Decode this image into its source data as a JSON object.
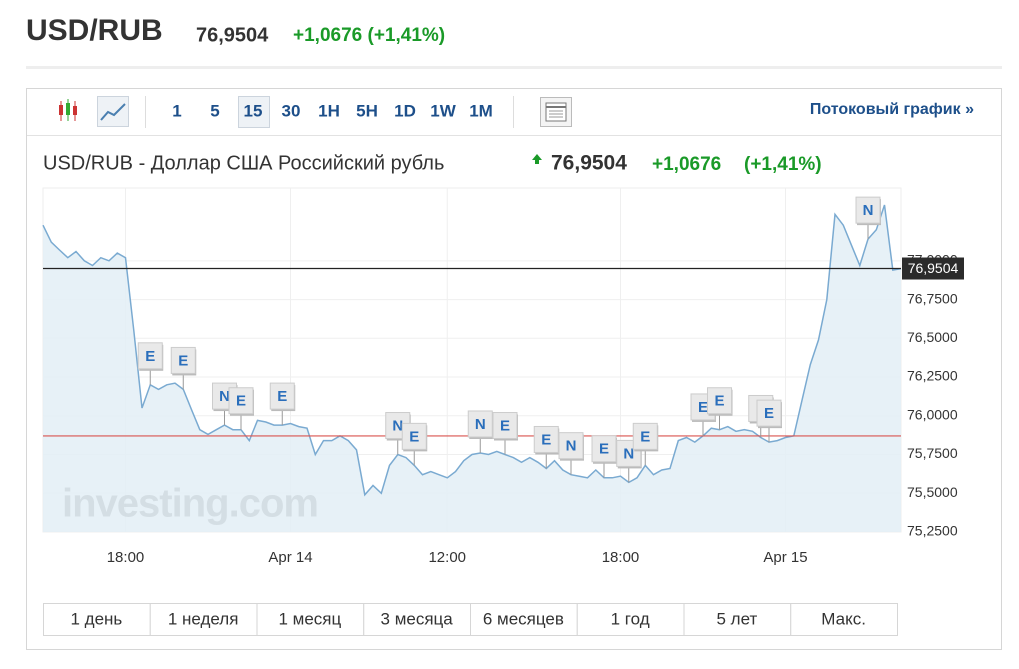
{
  "header": {
    "title": "USD/RUB",
    "price": "76,9504",
    "change": "+1,0676 (+1,41%)"
  },
  "toolbar": {
    "intervals": [
      "1",
      "5",
      "15",
      "30",
      "1H",
      "5H",
      "1D",
      "1W",
      "1M"
    ],
    "stream_link": "Потоковый график »"
  },
  "chart_data": {
    "type": "line",
    "title": "USD/RUB - Доллар США Российский рубль",
    "last_price": {
      "value": 76.9504,
      "label": "76,9504"
    },
    "change": "+1,0676",
    "change_pct": "(+1,41%)",
    "categories": [
      null,
      null,
      null,
      null,
      null,
      null,
      null,
      null,
      null,
      null,
      "18:00",
      null,
      null,
      null,
      null,
      null,
      null,
      null,
      null,
      null,
      null,
      null,
      null,
      null,
      null,
      null,
      null,
      null,
      null,
      null,
      "Apr 14",
      null,
      null,
      null,
      null,
      null,
      null,
      null,
      null,
      null,
      null,
      null,
      null,
      null,
      null,
      null,
      null,
      null,
      null,
      "12:00",
      null,
      null,
      null,
      null,
      null,
      null,
      null,
      null,
      null,
      null,
      null,
      null,
      null,
      null,
      null,
      null,
      null,
      null,
      null,
      null,
      "18:00",
      null,
      null,
      null,
      null,
      null,
      null,
      null,
      null,
      null,
      null,
      null,
      null,
      null,
      null,
      null,
      null,
      null,
      null,
      null,
      "Apr 15",
      null,
      null,
      null,
      null,
      null,
      null,
      null,
      null,
      null,
      null,
      null,
      null,
      null,
      null
    ],
    "values": [
      77.23,
      77.12,
      77.07,
      77.02,
      77.06,
      77.0,
      76.97,
      77.02,
      77.0,
      77.05,
      77.02,
      76.55,
      76.05,
      76.2,
      76.17,
      76.2,
      76.21,
      76.17,
      76.04,
      75.91,
      75.88,
      75.91,
      75.94,
      75.91,
      75.91,
      75.84,
      75.97,
      75.96,
      75.94,
      75.94,
      75.95,
      75.93,
      75.92,
      75.75,
      75.84,
      75.84,
      75.87,
      75.84,
      75.78,
      75.49,
      75.55,
      75.5,
      75.68,
      75.75,
      75.73,
      75.68,
      75.62,
      75.64,
      75.62,
      75.6,
      75.64,
      75.71,
      75.75,
      75.76,
      75.75,
      75.77,
      75.75,
      75.73,
      75.7,
      75.73,
      75.7,
      75.66,
      75.71,
      75.65,
      75.62,
      75.61,
      75.6,
      75.65,
      75.6,
      75.6,
      75.61,
      75.57,
      75.6,
      75.68,
      75.62,
      75.65,
      75.66,
      75.84,
      75.86,
      75.83,
      75.87,
      75.92,
      75.91,
      75.93,
      75.9,
      75.91,
      75.9,
      75.86,
      75.83,
      75.84,
      75.86,
      75.87,
      76.1,
      76.33,
      76.49,
      76.75,
      77.3,
      77.23,
      77.1,
      76.97,
      77.14,
      77.2,
      77.36,
      76.94,
      76.95
    ],
    "color": "#7aaad1",
    "area_color": "#e3eef6",
    "reference_line": 75.87,
    "reference_color": "#d9534f",
    "ylim": [
      75.25,
      77.47
    ],
    "yticks": [
      {
        "value": 75.25,
        "label": "75,2500"
      },
      {
        "value": 75.5,
        "label": "75,5000"
      },
      {
        "value": 75.75,
        "label": "75,7500"
      },
      {
        "value": 76.0,
        "label": "76,0000"
      },
      {
        "value": 76.25,
        "label": "76,2500"
      },
      {
        "value": 76.5,
        "label": "76,5000"
      },
      {
        "value": 76.75,
        "label": "76,7500"
      },
      {
        "value": 77.0,
        "label": "77,0000"
      }
    ],
    "grid": true,
    "events": [
      {
        "label": "E",
        "at": 13
      },
      {
        "label": "E",
        "at": 17
      },
      {
        "label": "N",
        "at": 22
      },
      {
        "label": "E",
        "at": 24
      },
      {
        "label": "E",
        "at": 29
      },
      {
        "label": "N",
        "at": 43
      },
      {
        "label": "E",
        "at": 45
      },
      {
        "label": "N",
        "at": 53
      },
      {
        "label": "E",
        "at": 56
      },
      {
        "label": "E",
        "at": 61
      },
      {
        "label": "N",
        "at": 64
      },
      {
        "label": "E",
        "at": 68
      },
      {
        "label": "N",
        "at": 71
      },
      {
        "label": "E",
        "at": 73
      },
      {
        "label": "E",
        "at": 80
      },
      {
        "label": "E",
        "at": 82
      },
      {
        "label": "E",
        "at": 87
      },
      {
        "label": "E",
        "at": 88
      },
      {
        "label": "N",
        "at": 100
      }
    ],
    "watermark": "investing.com"
  },
  "ranges": [
    "1 день",
    "1 неделя",
    "1 месяц",
    "3 месяца",
    "6 месяцев",
    "1 год",
    "5 лет",
    "Макс."
  ]
}
